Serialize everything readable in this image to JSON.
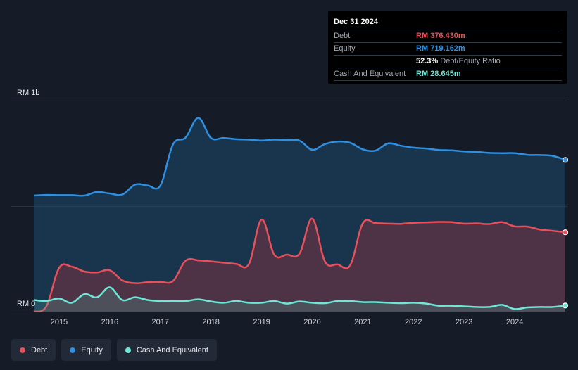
{
  "tooltip": {
    "date": "Dec 31 2024",
    "rows": [
      {
        "label": "Debt",
        "value": "RM 376.430m"
      },
      {
        "label": "Equity",
        "value": "RM 719.162m"
      },
      {
        "label": "",
        "value": "52.3%",
        "suffix": "Debt/Equity Ratio"
      },
      {
        "label": "Cash And Equivalent",
        "value": "RM 28.645m"
      }
    ]
  },
  "legend": [
    {
      "label": "Debt",
      "color": "#e8505b"
    },
    {
      "label": "Equity",
      "color": "#2f8fe0"
    },
    {
      "label": "Cash And Equivalent",
      "color": "#6ee7d6"
    }
  ],
  "chart_data": {
    "type": "area",
    "ylabel_top": "RM 1b",
    "ylabel_bottom": "RM 0",
    "ylim": [
      0,
      1000
    ],
    "xlim": [
      2014.5,
      2025.0
    ],
    "x_ticks": [
      "2015",
      "2016",
      "2017",
      "2018",
      "2019",
      "2020",
      "2021",
      "2022",
      "2023",
      "2024"
    ],
    "grid": true,
    "colors": {
      "debt": "#e8505b",
      "equity": "#2f8fe0",
      "cash": "#6ee7d6"
    },
    "series": [
      {
        "name": "Equity",
        "x": [
          2014.5,
          2014.75,
          2015.0,
          2015.25,
          2015.5,
          2015.75,
          2016.0,
          2016.25,
          2016.5,
          2016.75,
          2017.0,
          2017.25,
          2017.5,
          2017.75,
          2018.0,
          2018.25,
          2018.5,
          2018.75,
          2019.0,
          2019.25,
          2019.5,
          2019.75,
          2020.0,
          2020.25,
          2020.5,
          2020.75,
          2021.0,
          2021.25,
          2021.5,
          2021.75,
          2022.0,
          2022.25,
          2022.5,
          2022.75,
          2023.0,
          2023.25,
          2023.5,
          2023.75,
          2024.0,
          2024.25,
          2024.5,
          2024.75,
          2025.0
        ],
        "values": [
          550,
          553,
          552,
          552,
          550,
          567,
          560,
          555,
          602,
          598,
          598,
          792,
          825,
          918,
          823,
          823,
          817,
          815,
          811,
          815,
          813,
          810,
          767,
          794,
          806,
          800,
          769,
          763,
          797,
          786,
          777,
          773,
          766,
          764,
          759,
          757,
          752,
          751,
          751,
          743,
          742,
          738,
          719
        ]
      },
      {
        "name": "Debt",
        "x": [
          2014.5,
          2014.75,
          2015.0,
          2015.25,
          2015.5,
          2015.75,
          2016.0,
          2016.25,
          2016.5,
          2016.75,
          2017.0,
          2017.25,
          2017.5,
          2017.75,
          2018.0,
          2018.25,
          2018.5,
          2018.75,
          2019.0,
          2019.25,
          2019.5,
          2019.75,
          2020.0,
          2020.25,
          2020.5,
          2020.75,
          2021.0,
          2021.25,
          2021.5,
          2021.75,
          2022.0,
          2022.25,
          2022.5,
          2022.75,
          2023.0,
          2023.25,
          2023.5,
          2023.75,
          2024.0,
          2024.25,
          2024.5,
          2024.75,
          2025.0
        ],
        "values": [
          0,
          26,
          207,
          213,
          190,
          186,
          196,
          148,
          135,
          139,
          141,
          145,
          241,
          243,
          238,
          232,
          226,
          226,
          436,
          270,
          270,
          275,
          440,
          238,
          224,
          220,
          419,
          419,
          417,
          416,
          421,
          423,
          425,
          424,
          417,
          418,
          415,
          424,
          404,
          403,
          389,
          383,
          376
        ]
      },
      {
        "name": "Cash And Equivalent",
        "x": [
          2014.5,
          2014.75,
          2015.0,
          2015.25,
          2015.5,
          2015.75,
          2016.0,
          2016.25,
          2016.5,
          2016.75,
          2017.0,
          2017.25,
          2017.5,
          2017.75,
          2018.0,
          2018.25,
          2018.5,
          2018.75,
          2019.0,
          2019.25,
          2019.5,
          2019.75,
          2020.0,
          2020.25,
          2020.5,
          2020.75,
          2021.0,
          2021.25,
          2021.5,
          2021.75,
          2022.0,
          2022.25,
          2022.5,
          2022.75,
          2023.0,
          2023.25,
          2023.5,
          2023.75,
          2024.0,
          2024.25,
          2024.5,
          2024.75,
          2025.0
        ],
        "values": [
          55,
          50,
          62,
          42,
          83,
          68,
          115,
          55,
          68,
          55,
          50,
          50,
          50,
          58,
          48,
          42,
          50,
          42,
          42,
          50,
          38,
          48,
          42,
          40,
          50,
          50,
          45,
          45,
          42,
          40,
          42,
          38,
          28,
          28,
          25,
          22,
          22,
          32,
          12,
          20,
          22,
          22,
          29
        ]
      }
    ]
  }
}
